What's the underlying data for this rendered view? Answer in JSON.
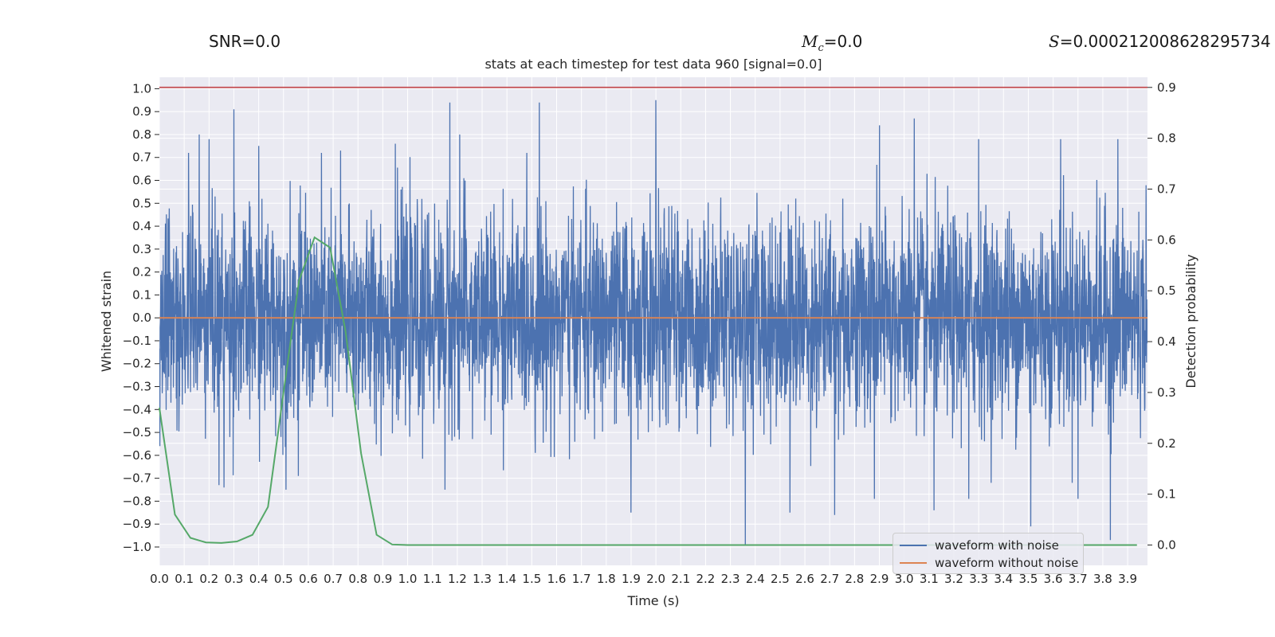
{
  "stats": {
    "snr_label": "SNR=0.0",
    "mc_symbol": "M",
    "mc_subscript": "c",
    "mc_value": "=0.0",
    "s_symbol": "S",
    "s_value": "=0.000212008628295734"
  },
  "chart_data": {
    "type": "line",
    "title": "stats at each timestep for test data 960 [signal=0.0]",
    "xlabel": "Time (s)",
    "ylabel": "Whitened strain",
    "ylabel_right": "Detection probability",
    "xlim": [
      0.0,
      3.98
    ],
    "ylim": [
      -1.08,
      1.05
    ],
    "ylim_right": [
      -0.04,
      0.92
    ],
    "xticks": [
      "0.0",
      "0.1",
      "0.2",
      "0.3",
      "0.4",
      "0.5",
      "0.6",
      "0.7",
      "0.8",
      "0.9",
      "1.0",
      "1.1",
      "1.2",
      "1.3",
      "1.4",
      "1.5",
      "1.6",
      "1.7",
      "1.8",
      "1.9",
      "2.0",
      "2.1",
      "2.2",
      "2.3",
      "2.4",
      "2.5",
      "2.6",
      "2.7",
      "2.8",
      "2.9",
      "3.0",
      "3.1",
      "3.2",
      "3.3",
      "3.4",
      "3.5",
      "3.6",
      "3.7",
      "3.8",
      "3.9"
    ],
    "yticks": [
      "1.0",
      "0.9",
      "0.8",
      "0.7",
      "0.6",
      "0.5",
      "0.4",
      "0.3",
      "0.2",
      "0.1",
      "0.0",
      "-0.1",
      "-0.2",
      "-0.3",
      "-0.4",
      "-0.5",
      "-0.6",
      "-0.7",
      "-0.8",
      "-0.9",
      "-1.0"
    ],
    "yticks_right": [
      "0.9",
      "0.8",
      "0.7",
      "0.6",
      "0.5",
      "0.4",
      "0.3",
      "0.2",
      "0.1",
      "0.0"
    ],
    "grid": true,
    "legend_position": "lower-right",
    "series": [
      {
        "name": "waveform with noise",
        "color": "#4c72b0",
        "axis": "left",
        "n_points": 4096,
        "peaks": [
          [
            0.16,
            0.8
          ],
          [
            0.2,
            0.78
          ],
          [
            0.3,
            0.91
          ],
          [
            0.4,
            0.75
          ],
          [
            0.73,
            0.73
          ],
          [
            0.95,
            0.76
          ],
          [
            1.17,
            0.94
          ],
          [
            1.21,
            0.8
          ],
          [
            1.53,
            0.94
          ],
          [
            2.0,
            0.95
          ],
          [
            2.9,
            0.84
          ],
          [
            3.04,
            0.87
          ],
          [
            3.3,
            0.78
          ],
          [
            3.63,
            0.78
          ],
          [
            3.86,
            0.78
          ]
        ],
        "troughs": [
          [
            0.24,
            -0.73
          ],
          [
            0.26,
            -0.74
          ],
          [
            0.51,
            -0.75
          ],
          [
            0.56,
            -0.69
          ],
          [
            1.15,
            -0.75
          ],
          [
            1.9,
            -0.85
          ],
          [
            2.36,
            -0.99
          ],
          [
            2.54,
            -0.85
          ],
          [
            2.72,
            -0.86
          ],
          [
            2.88,
            -0.79
          ],
          [
            3.12,
            -0.84
          ],
          [
            3.26,
            -0.79
          ],
          [
            3.51,
            -0.91
          ],
          [
            3.7,
            -0.79
          ],
          [
            3.83,
            -0.97
          ]
        ]
      },
      {
        "name": "waveform without noise",
        "color": "#dd8452",
        "axis": "left",
        "x": [
          0.0,
          3.98
        ],
        "y": [
          0.0,
          0.0
        ]
      },
      {
        "color": "#55a868",
        "axis": "right",
        "x": [
          0.0,
          0.0625,
          0.125,
          0.1875,
          0.25,
          0.3125,
          0.375,
          0.4375,
          0.5,
          0.5625,
          0.625,
          0.6875,
          0.75,
          0.8125,
          0.875,
          0.9375,
          1.0,
          1.5,
          2.0,
          2.5,
          3.0,
          3.5,
          3.9375
        ],
        "y": [
          0.27,
          0.06,
          0.014,
          0.005,
          0.004,
          0.007,
          0.02,
          0.075,
          0.3,
          0.52,
          0.605,
          0.585,
          0.42,
          0.18,
          0.02,
          0.001,
          0.0,
          0.0,
          0.0,
          0.0,
          0.0,
          0.0,
          0.0
        ]
      },
      {
        "color": "#c44e52",
        "axis": "right",
        "x": [
          0.0,
          3.98
        ],
        "y": [
          0.9,
          0.9
        ]
      }
    ]
  }
}
